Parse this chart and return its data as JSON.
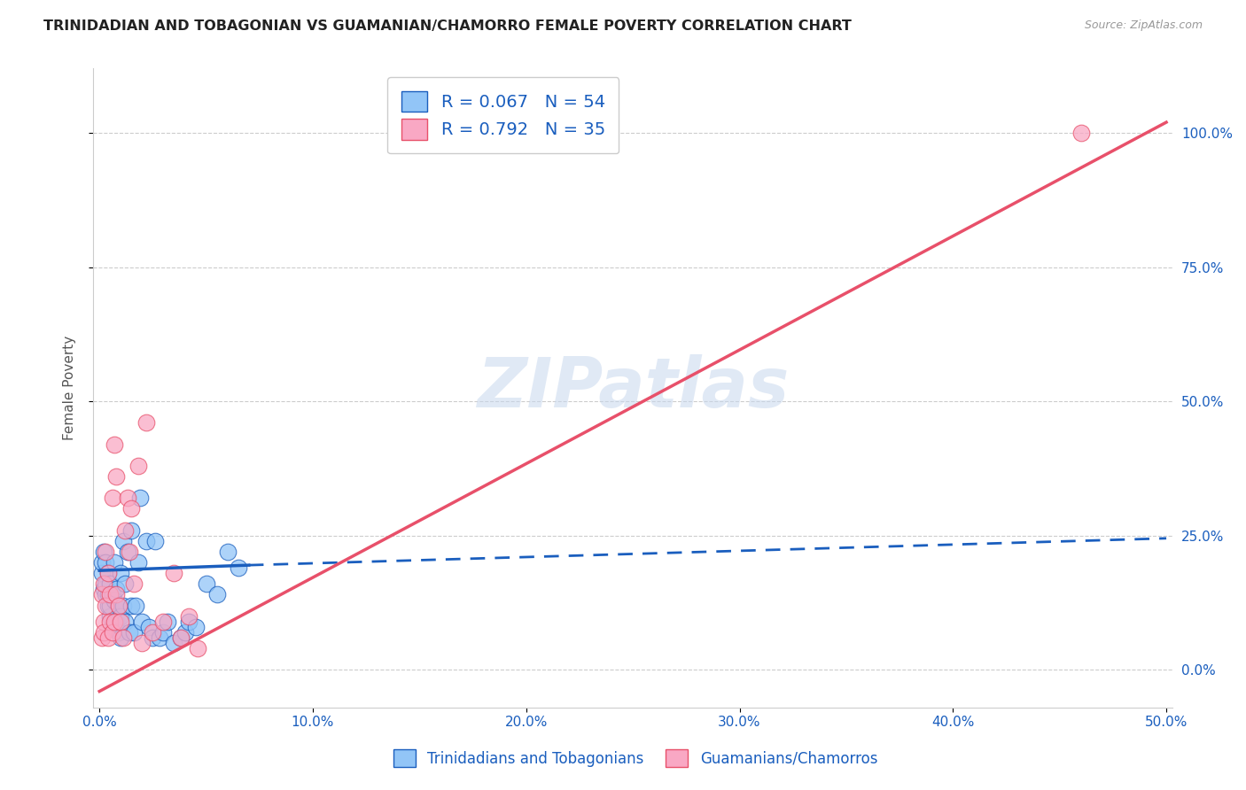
{
  "title": "TRINIDADIAN AND TOBAGONIAN VS GUAMANIAN/CHAMORRO FEMALE POVERTY CORRELATION CHART",
  "source": "Source: ZipAtlas.com",
  "ylabel": "Female Poverty",
  "legend_label1": "Trinidadians and Tobagonians",
  "legend_label2": "Guamanians/Chamorros",
  "R1": 0.067,
  "N1": 54,
  "R2": 0.792,
  "N2": 35,
  "color1": "#92C5F7",
  "color2": "#F9A8C4",
  "line_color1": "#1A5EBE",
  "line_color2": "#E8506A",
  "xlim": [
    0.0,
    0.5
  ],
  "ylim": [
    -0.07,
    1.12
  ],
  "xticks": [
    0.0,
    0.1,
    0.2,
    0.3,
    0.4,
    0.5
  ],
  "yticks": [
    0.0,
    0.25,
    0.5,
    0.75,
    1.0
  ],
  "watermark": "ZIPatlas",
  "blue_scatter_x": [
    0.001,
    0.001,
    0.002,
    0.002,
    0.003,
    0.003,
    0.003,
    0.004,
    0.004,
    0.004,
    0.005,
    0.005,
    0.005,
    0.006,
    0.006,
    0.007,
    0.007,
    0.007,
    0.008,
    0.008,
    0.009,
    0.009,
    0.01,
    0.01,
    0.01,
    0.011,
    0.011,
    0.012,
    0.012,
    0.013,
    0.014,
    0.015,
    0.015,
    0.016,
    0.017,
    0.018,
    0.019,
    0.02,
    0.022,
    0.023,
    0.025,
    0.026,
    0.028,
    0.03,
    0.032,
    0.035,
    0.038,
    0.04,
    0.042,
    0.045,
    0.05,
    0.055,
    0.06,
    0.065
  ],
  "blue_scatter_y": [
    0.18,
    0.2,
    0.15,
    0.22,
    0.14,
    0.16,
    0.2,
    0.12,
    0.14,
    0.18,
    0.1,
    0.12,
    0.16,
    0.08,
    0.14,
    0.08,
    0.13,
    0.2,
    0.09,
    0.15,
    0.07,
    0.12,
    0.06,
    0.1,
    0.18,
    0.12,
    0.24,
    0.09,
    0.16,
    0.22,
    0.07,
    0.12,
    0.26,
    0.07,
    0.12,
    0.2,
    0.32,
    0.09,
    0.24,
    0.08,
    0.06,
    0.24,
    0.06,
    0.07,
    0.09,
    0.05,
    0.06,
    0.07,
    0.09,
    0.08,
    0.16,
    0.14,
    0.22,
    0.19
  ],
  "pink_scatter_x": [
    0.001,
    0.001,
    0.002,
    0.002,
    0.002,
    0.003,
    0.003,
    0.004,
    0.004,
    0.005,
    0.005,
    0.006,
    0.006,
    0.007,
    0.007,
    0.008,
    0.008,
    0.009,
    0.01,
    0.011,
    0.012,
    0.013,
    0.014,
    0.015,
    0.016,
    0.018,
    0.02,
    0.022,
    0.025,
    0.03,
    0.035,
    0.038,
    0.042,
    0.046,
    0.46
  ],
  "pink_scatter_y": [
    0.14,
    0.06,
    0.09,
    0.16,
    0.07,
    0.12,
    0.22,
    0.06,
    0.18,
    0.09,
    0.14,
    0.07,
    0.32,
    0.09,
    0.42,
    0.14,
    0.36,
    0.12,
    0.09,
    0.06,
    0.26,
    0.32,
    0.22,
    0.3,
    0.16,
    0.38,
    0.05,
    0.46,
    0.07,
    0.09,
    0.18,
    0.06,
    0.1,
    0.04,
    1.0
  ],
  "blue_line_x0": 0.0,
  "blue_line_x_solid_end": 0.07,
  "blue_line_x1": 0.5,
  "blue_line_y0": 0.185,
  "blue_line_y_solid_end": 0.195,
  "blue_line_y1": 0.245,
  "pink_line_x0": 0.0,
  "pink_line_x1": 0.5,
  "pink_line_y0": -0.04,
  "pink_line_y1": 1.02
}
